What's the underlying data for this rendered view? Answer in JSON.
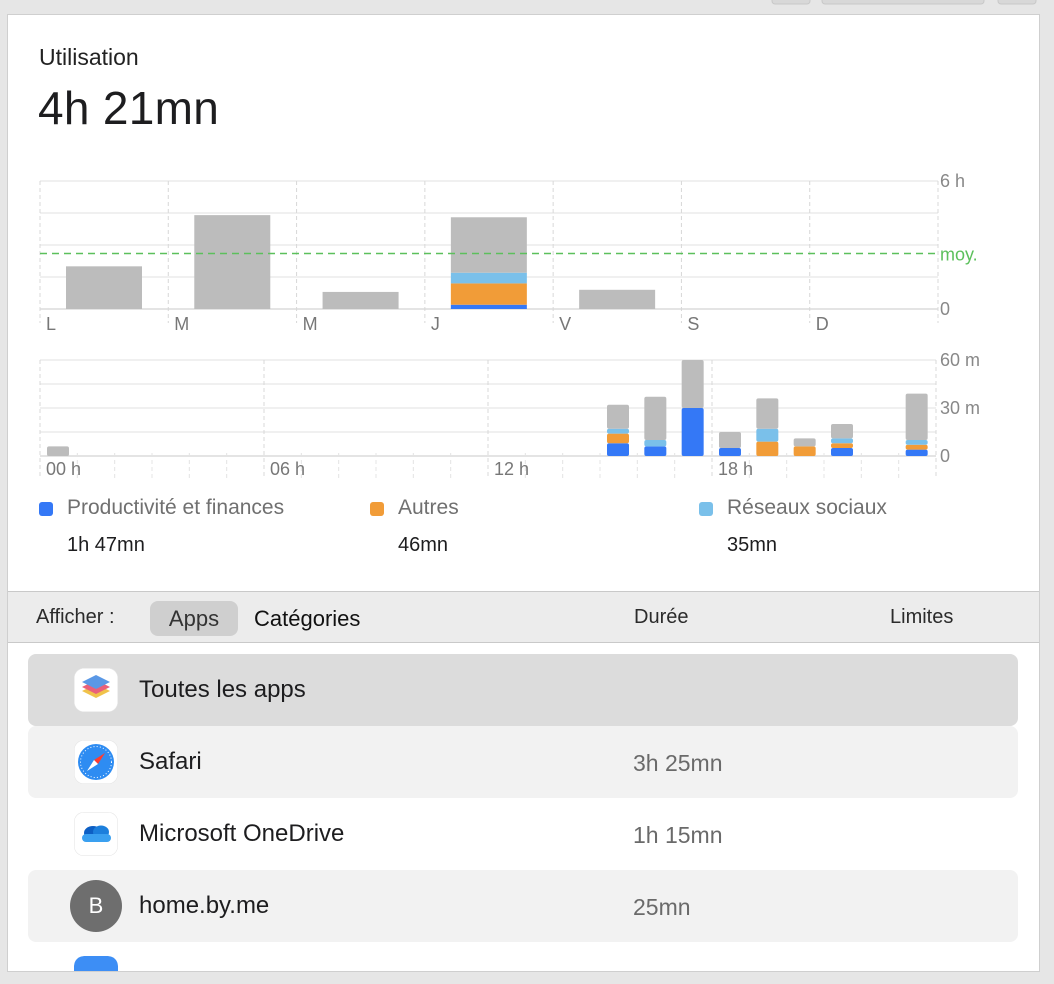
{
  "header": {
    "title": "Utilisation",
    "total": "4h 21mn"
  },
  "colors": {
    "other": "#bcbcbc",
    "productivity": "#3478f6",
    "autres": "#f19c38",
    "social": "#7ac0ea",
    "average": "#5cc05c"
  },
  "chart_data": [
    {
      "type": "bar",
      "title": "",
      "categories": [
        "L",
        "M",
        "M",
        "J",
        "V",
        "S",
        "D"
      ],
      "y_ticks": [
        "6 h",
        "moy.",
        "0"
      ],
      "ylim": [
        0,
        6
      ],
      "average": 2.6,
      "grid": true,
      "series": [
        {
          "name": "Productivité et finances",
          "values": [
            0,
            0,
            0,
            0.2,
            0,
            0,
            0
          ]
        },
        {
          "name": "Autres",
          "values": [
            0,
            0,
            0,
            1.0,
            0,
            0,
            0
          ]
        },
        {
          "name": "Réseaux sociaux",
          "values": [
            0,
            0,
            0,
            0.5,
            0,
            0,
            0
          ]
        },
        {
          "values": [
            2.0,
            4.4,
            0.8,
            2.6,
            0.9,
            0,
            0
          ]
        }
      ]
    },
    {
      "type": "bar",
      "title": "",
      "x_ticks": [
        "00 h",
        "06 h",
        "12 h",
        "18 h"
      ],
      "y_ticks": [
        "60 m",
        "30 m",
        "0"
      ],
      "ylim": [
        0,
        60
      ],
      "grid": true,
      "hours": [
        0,
        15,
        16,
        17,
        18,
        19,
        20,
        21,
        23
      ],
      "series": [
        {
          "name": "Productivité et finances",
          "values": [
            0,
            8,
            6,
            30,
            5,
            0,
            0,
            5,
            4
          ]
        },
        {
          "name": "Autres",
          "values": [
            0,
            6,
            0,
            0,
            0,
            9,
            6,
            3,
            3
          ]
        },
        {
          "name": "Réseaux sociaux",
          "values": [
            0,
            3,
            4,
            0,
            0,
            8,
            0,
            3,
            3
          ]
        },
        {
          "values": [
            6,
            15,
            27,
            30,
            10,
            19,
            5,
            9,
            29
          ]
        }
      ]
    }
  ],
  "legend": [
    {
      "name": "Productivité et finances",
      "value": "1h 47mn",
      "color": "#3478f6"
    },
    {
      "name": "Autres",
      "value": "46mn",
      "color": "#f19c38"
    },
    {
      "name": "Réseaux sociaux",
      "value": "35mn",
      "color": "#7ac0ea"
    }
  ],
  "toolbar": {
    "show_label": "Afficher :",
    "apps_label": "Apps",
    "categories_label": "Catégories",
    "duration_header": "Durée",
    "limits_header": "Limites"
  },
  "apps": [
    {
      "name": "Toutes les apps",
      "duration": "",
      "icon": "stack-icon"
    },
    {
      "name": "Safari",
      "duration": "3h 25mn",
      "icon": "safari-compass-icon"
    },
    {
      "name": "Microsoft OneDrive",
      "duration": "1h 15mn",
      "icon": "onedrive-cloud-icon"
    },
    {
      "name": "home.by.me",
      "duration": "25mn",
      "icon": "letter-avatar-icon",
      "avatar_letter": "B"
    }
  ]
}
